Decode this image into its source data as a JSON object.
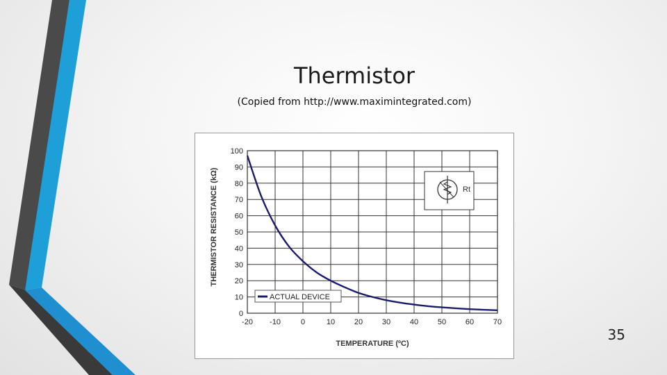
{
  "slide": {
    "title": "Thermistor",
    "subtitle": "(Copied from http://www.maximintegrated.com)",
    "number": "35"
  },
  "colors": {
    "accent_blue": "#1f9fd8",
    "accent_dark": "#4a4a4a",
    "curve": "#1a1a6e"
  },
  "chart_data": {
    "type": "line",
    "title": "",
    "xlabel": "TEMPERATURE (ºC)",
    "ylabel": "THERMISTOR RESISTANCE (kΩ)",
    "xlim": [
      -20,
      70
    ],
    "ylim": [
      0,
      100
    ],
    "xticks": [
      "-20",
      "-10",
      "0",
      "10",
      "20",
      "30",
      "40",
      "50",
      "60",
      "70"
    ],
    "yticks": [
      "0",
      "10",
      "20",
      "30",
      "40",
      "50",
      "60",
      "70",
      "80",
      "90",
      "100"
    ],
    "grid": true,
    "legend_position": "bottom-left",
    "inset_label": "Rt",
    "series": [
      {
        "name": "ACTUAL DEVICE",
        "x": [
          -20,
          -15,
          -10,
          -5,
          0,
          5,
          10,
          15,
          20,
          25,
          30,
          35,
          40,
          45,
          50,
          55,
          60,
          65,
          70
        ],
        "y": [
          97,
          72,
          54,
          41,
          32,
          25,
          20,
          16,
          12.5,
          10,
          8,
          6.5,
          5.3,
          4.3,
          3.6,
          3,
          2.5,
          2.1,
          1.8
        ]
      }
    ]
  }
}
